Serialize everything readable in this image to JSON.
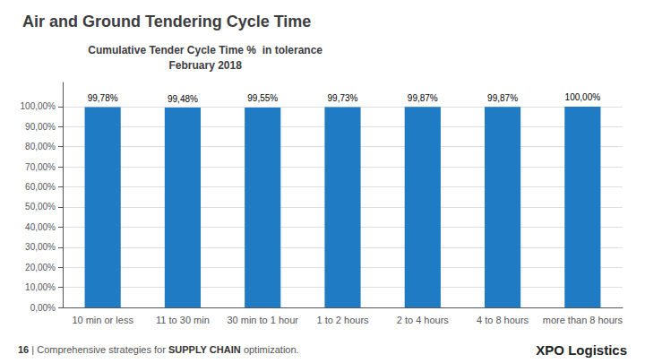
{
  "chart_data": {
    "type": "bar",
    "title": "Air and Ground Tendering Cycle Time",
    "subtitle": "Cumulative Tender Cycle Time %  in tolerance\nFebruary 2018",
    "categories": [
      "10 min or less",
      "11 to 30 min",
      "30 min to 1 hour",
      "1 to 2 hours",
      "2 to 4 hours",
      "4 to 8 hours",
      "more than 8 hours"
    ],
    "values": [
      99.78,
      99.48,
      99.55,
      99.73,
      99.87,
      99.87,
      100.0
    ],
    "value_labels": [
      "99,78%",
      "99,48%",
      "99,55%",
      "99,73%",
      "99,87%",
      "99,87%",
      "100,00%"
    ],
    "data_labels": true,
    "color": "#1F7BC4",
    "ylim": [
      0,
      112
    ],
    "yticks": [
      {
        "value": 0,
        "label": "0,00%"
      },
      {
        "value": 10,
        "label": "10,00%"
      },
      {
        "value": 20,
        "label": "20,00%"
      },
      {
        "value": 30,
        "label": "30,00%"
      },
      {
        "value": 40,
        "label": "40,00%"
      },
      {
        "value": 50,
        "label": "50,00%"
      },
      {
        "value": 60,
        "label": "60,00%"
      },
      {
        "value": 70,
        "label": "70,00%"
      },
      {
        "value": 80,
        "label": "80,00%"
      },
      {
        "value": 90,
        "label": "90,00%"
      },
      {
        "value": 100,
        "label": "100,00%"
      }
    ],
    "grid": true,
    "annotations": [
      "16",
      "|",
      "Comprehensive strategies for",
      "SUPPLY CHAIN",
      "optimization.",
      "XPO",
      "Logistics"
    ]
  }
}
